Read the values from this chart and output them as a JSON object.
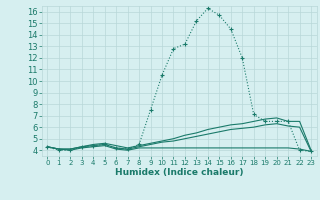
{
  "bg_color": "#d6eff0",
  "line_color": "#1a7a6a",
  "grid_color": "#b8d8d8",
  "xlabel": "Humidex (Indice chaleur)",
  "xlim": [
    -0.5,
    23.5
  ],
  "ylim": [
    3.5,
    16.5
  ],
  "yticks": [
    4,
    5,
    6,
    7,
    8,
    9,
    10,
    11,
    12,
    13,
    14,
    15,
    16
  ],
  "xticks": [
    0,
    1,
    2,
    3,
    4,
    5,
    6,
    7,
    8,
    9,
    10,
    11,
    12,
    13,
    14,
    15,
    16,
    17,
    18,
    19,
    20,
    21,
    22,
    23
  ],
  "series": [
    {
      "x": [
        0,
        1,
        2,
        3,
        4,
        5,
        6,
        7,
        8,
        9,
        10,
        11,
        12,
        13,
        14,
        15,
        16,
        17,
        18,
        19,
        20,
        21,
        22,
        23
      ],
      "y": [
        4.3,
        4.0,
        4.0,
        4.3,
        4.4,
        4.5,
        4.2,
        4.1,
        4.5,
        7.5,
        10.5,
        12.8,
        13.2,
        15.2,
        16.3,
        15.7,
        14.5,
        12.0,
        7.1,
        6.5,
        6.5,
        6.5,
        4.0,
        3.9
      ],
      "marker": "+",
      "dotted": true
    },
    {
      "x": [
        0,
        1,
        2,
        3,
        4,
        5,
        6,
        7,
        8,
        9,
        10,
        11,
        12,
        13,
        14,
        15,
        16,
        17,
        18,
        19,
        20,
        21,
        22,
        23
      ],
      "y": [
        4.3,
        4.1,
        4.1,
        4.3,
        4.5,
        4.6,
        4.4,
        4.2,
        4.4,
        4.6,
        4.8,
        5.0,
        5.3,
        5.5,
        5.8,
        6.0,
        6.2,
        6.3,
        6.5,
        6.7,
        6.8,
        6.5,
        6.5,
        4.0
      ],
      "marker": null,
      "dotted": false
    },
    {
      "x": [
        0,
        1,
        2,
        3,
        4,
        5,
        6,
        7,
        8,
        9,
        10,
        11,
        12,
        13,
        14,
        15,
        16,
        17,
        18,
        19,
        20,
        21,
        22,
        23
      ],
      "y": [
        4.3,
        4.1,
        4.1,
        4.3,
        4.4,
        4.5,
        4.2,
        4.1,
        4.3,
        4.5,
        4.7,
        4.8,
        5.0,
        5.2,
        5.4,
        5.6,
        5.8,
        5.9,
        6.0,
        6.2,
        6.3,
        6.1,
        6.0,
        3.9
      ],
      "marker": null,
      "dotted": false
    },
    {
      "x": [
        0,
        1,
        2,
        3,
        4,
        5,
        6,
        7,
        8,
        9,
        10,
        11,
        12,
        13,
        14,
        15,
        16,
        17,
        18,
        19,
        20,
        21,
        22,
        23
      ],
      "y": [
        4.3,
        4.1,
        4.0,
        4.2,
        4.3,
        4.4,
        4.1,
        4.0,
        4.2,
        4.2,
        4.2,
        4.2,
        4.2,
        4.2,
        4.2,
        4.2,
        4.2,
        4.2,
        4.2,
        4.2,
        4.2,
        4.2,
        4.1,
        3.9
      ],
      "marker": null,
      "dotted": false
    }
  ]
}
